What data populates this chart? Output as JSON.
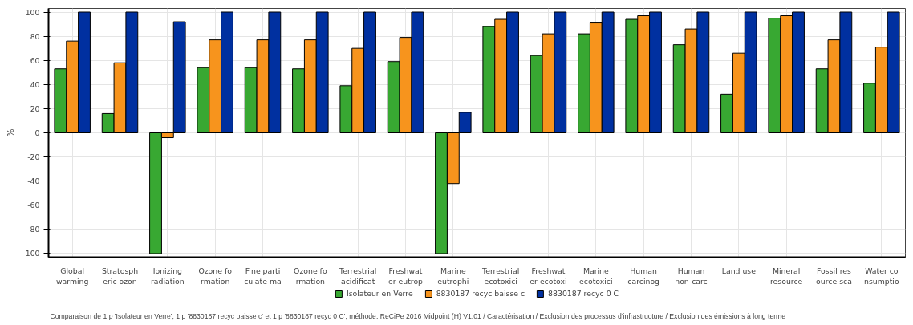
{
  "chart_data": {
    "type": "bar",
    "ylabel": "%",
    "categories": [
      "Global\nwarming",
      "Stratosph\neric ozon",
      "Ionizing\nradiation",
      "Ozone fo\nrmation",
      "Fine parti\nculate ma",
      "Ozone fo\nrmation",
      "Terrestrial\nacidificat",
      "Freshwat\ner eutrop",
      "Marine\neutrophi",
      "Terrestrial\necotoxici",
      "Freshwat\ner ecotoxi",
      "Marine\necotoxici",
      "Human\ncarcinog",
      "Human\nnon-carc",
      "Land use",
      "Mineral\nresource",
      "Fossil res\nource sca",
      "Water co\nnsumptio"
    ],
    "series": [
      {
        "name": "Isolateur en Verre",
        "color": "#38a832",
        "values": [
          53,
          16,
          -100,
          54,
          54,
          53,
          39,
          59,
          -100,
          88,
          64,
          82,
          94,
          73,
          32,
          95,
          53,
          41
        ]
      },
      {
        "name": "8830187 recyc baisse c",
        "color": "#f7941d",
        "values": [
          76,
          58,
          -4,
          77,
          77,
          77,
          70,
          79,
          -42,
          94,
          82,
          91,
          97,
          86,
          66,
          97,
          77,
          71
        ]
      },
      {
        "name": "8830187 recyc 0 C",
        "color": "#0030a0",
        "values": [
          100,
          100,
          92,
          100,
          100,
          100,
          100,
          100,
          17,
          100,
          100,
          100,
          100,
          100,
          100,
          100,
          100,
          100
        ]
      }
    ],
    "ylim": [
      -103,
      103
    ],
    "yticks": [
      -100,
      -80,
      -60,
      -40,
      -20,
      0,
      20,
      40,
      60,
      80,
      100
    ],
    "grid": true,
    "legend": "bottom",
    "annotations": [
      "Comparaison de 1 p 'Isolateur en Verre', 1 p '8830187 recyc baisse c' et 1 p '8830187 recyc 0 C', méthode: ReCiPe 2016 Midpoint (H) V1.01 / Caractérisation / Exclusion des processus d'infrastructure / Exclusion des émissions à long terme"
    ]
  }
}
